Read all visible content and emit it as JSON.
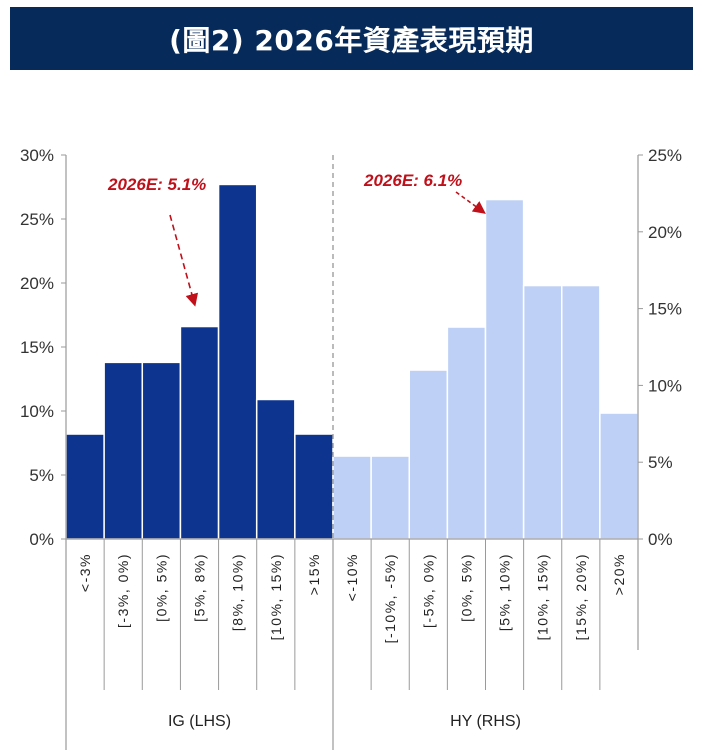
{
  "header": {
    "title": "(圖2) 2026年資產表現預期"
  },
  "chart_data": {
    "type": "bar",
    "title": "(圖2) 2026年資產表現預期",
    "colors": {
      "IG": "#0d3590",
      "HY": "#bed0f5",
      "annotation": "#c0101a"
    },
    "series": [
      {
        "name": "IG (LHS)",
        "axis": "left",
        "categories": [
          "<-3%",
          "[-3%, 0%)",
          "[0%, 5%)",
          "[5%, 8%)",
          "[8%, 10%)",
          "[10%, 15%)",
          ">15%"
        ],
        "values": [
          8.2,
          13.8,
          13.8,
          16.6,
          27.7,
          10.9,
          8.2
        ],
        "annotation": {
          "text": "2026E: 5.1%",
          "target_category": "[5%, 8%)"
        }
      },
      {
        "name": "HY (RHS)",
        "axis": "right",
        "categories": [
          "<-10%",
          "[-10%, -5%)",
          "[-5%, 0%)",
          "[0%, 5%)",
          "[5%, 10%)",
          "[10%, 15%)",
          "[15%, 20%)",
          ">20%"
        ],
        "values": [
          5.4,
          5.4,
          11.0,
          13.8,
          22.1,
          16.5,
          16.5,
          8.2
        ],
        "annotation": {
          "text": "2026E: 6.1%",
          "target_category": "[5%, 10%)"
        }
      }
    ],
    "left_axis": {
      "ylim": [
        0,
        30
      ],
      "ticks": [
        "0%",
        "5%",
        "10%",
        "15%",
        "20%",
        "25%",
        "30%"
      ]
    },
    "right_axis": {
      "ylim": [
        0,
        25
      ],
      "ticks": [
        "0%",
        "5%",
        "10%",
        "15%",
        "20%",
        "25%"
      ]
    },
    "grid": false,
    "legend": "none"
  }
}
